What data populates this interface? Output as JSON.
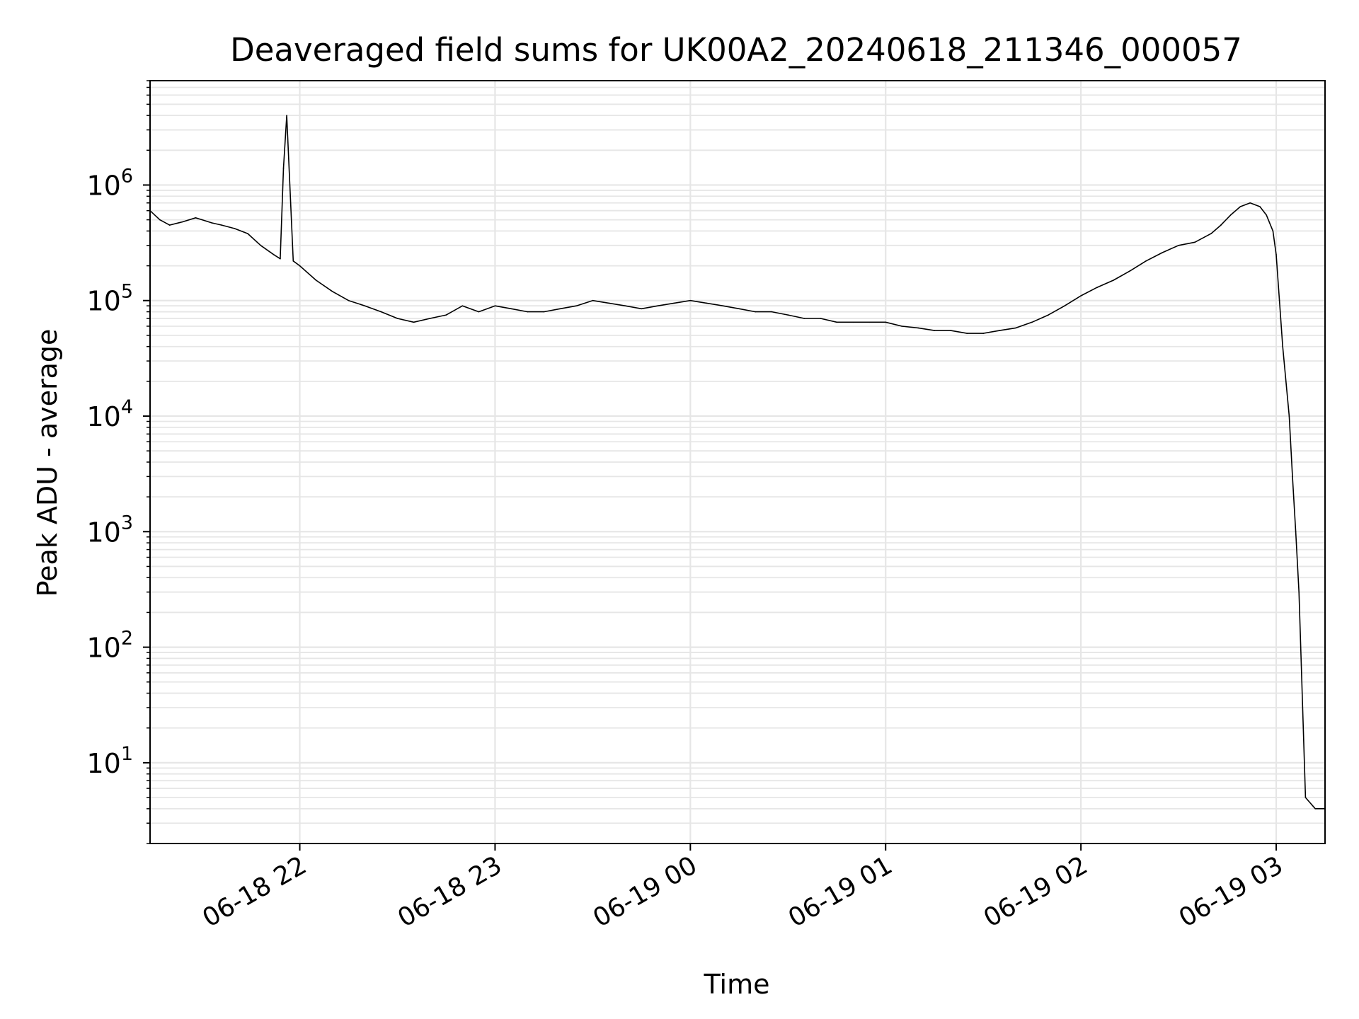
{
  "chart_data": {
    "type": "line",
    "title": "Deaveraged field sums for UK00A2_20240618_211346_000057",
    "xlabel": "Time",
    "ylabel": "Peak ADU - average",
    "x_scale": "time",
    "y_scale": "log",
    "xlim": [
      "2024-06-18 21:14",
      "2024-06-19 03:15"
    ],
    "ylim": [
      2,
      8000000
    ],
    "grid": true,
    "x_ticks": [
      "06-18 22",
      "06-18 23",
      "06-19 00",
      "06-19 01",
      "06-19 02",
      "06-19 03"
    ],
    "y_ticks": [
      {
        "base": "10",
        "exp": "1"
      },
      {
        "base": "10",
        "exp": "2"
      },
      {
        "base": "10",
        "exp": "3"
      },
      {
        "base": "10",
        "exp": "4"
      },
      {
        "base": "10",
        "exp": "5"
      },
      {
        "base": "10",
        "exp": "6"
      }
    ],
    "line_color": "#000000",
    "grid_color": "#e6e6e6",
    "series": [
      {
        "x": [
          "2024-06-18 21:14",
          "2024-06-18 21:17",
          "2024-06-18 21:20",
          "2024-06-18 21:24",
          "2024-06-18 21:28",
          "2024-06-18 21:30",
          "2024-06-18 21:33",
          "2024-06-18 21:36",
          "2024-06-18 21:40",
          "2024-06-18 21:44",
          "2024-06-18 21:48",
          "2024-06-18 21:52",
          "2024-06-18 21:54",
          "2024-06-18 21:55",
          "2024-06-18 21:56",
          "2024-06-18 21:58",
          "2024-06-18 22:00",
          "2024-06-18 22:05",
          "2024-06-18 22:10",
          "2024-06-18 22:15",
          "2024-06-18 22:20",
          "2024-06-18 22:25",
          "2024-06-18 22:30",
          "2024-06-18 22:35",
          "2024-06-18 22:40",
          "2024-06-18 22:45",
          "2024-06-18 22:50",
          "2024-06-18 22:55",
          "2024-06-18 23:00",
          "2024-06-18 23:05",
          "2024-06-18 23:10",
          "2024-06-18 23:15",
          "2024-06-18 23:20",
          "2024-06-18 23:25",
          "2024-06-18 23:30",
          "2024-06-18 23:35",
          "2024-06-18 23:40",
          "2024-06-18 23:45",
          "2024-06-18 23:50",
          "2024-06-18 23:55",
          "2024-06-19 00:00",
          "2024-06-19 00:05",
          "2024-06-19 00:10",
          "2024-06-19 00:15",
          "2024-06-19 00:20",
          "2024-06-19 00:25",
          "2024-06-19 00:30",
          "2024-06-19 00:35",
          "2024-06-19 00:40",
          "2024-06-19 00:45",
          "2024-06-19 00:50",
          "2024-06-19 00:55",
          "2024-06-19 01:00",
          "2024-06-19 01:05",
          "2024-06-19 01:10",
          "2024-06-19 01:15",
          "2024-06-19 01:20",
          "2024-06-19 01:25",
          "2024-06-19 01:30",
          "2024-06-19 01:35",
          "2024-06-19 01:40",
          "2024-06-19 01:45",
          "2024-06-19 01:50",
          "2024-06-19 01:55",
          "2024-06-19 02:00",
          "2024-06-19 02:05",
          "2024-06-19 02:10",
          "2024-06-19 02:15",
          "2024-06-19 02:20",
          "2024-06-19 02:25",
          "2024-06-19 02:30",
          "2024-06-19 02:35",
          "2024-06-19 02:40",
          "2024-06-19 02:43",
          "2024-06-19 02:46",
          "2024-06-19 02:49",
          "2024-06-19 02:52",
          "2024-06-19 02:55",
          "2024-06-19 02:57",
          "2024-06-19 02:59",
          "2024-06-19 03:00",
          "2024-06-19 03:01",
          "2024-06-19 03:02",
          "2024-06-19 03:03",
          "2024-06-19 03:04",
          "2024-06-19 03:05",
          "2024-06-19 03:06",
          "2024-06-19 03:07",
          "2024-06-19 03:09",
          "2024-06-19 03:12",
          "2024-06-19 03:15"
        ],
        "y": [
          600000,
          500000,
          450000,
          480000,
          520000,
          500000,
          470000,
          450000,
          420000,
          380000,
          300000,
          250000,
          230000,
          1400000,
          4000000,
          220000,
          200000,
          150000,
          120000,
          100000,
          90000,
          80000,
          70000,
          65000,
          70000,
          75000,
          90000,
          80000,
          90000,
          85000,
          80000,
          80000,
          85000,
          90000,
          100000,
          95000,
          90000,
          85000,
          90000,
          95000,
          100000,
          95000,
          90000,
          85000,
          80000,
          80000,
          75000,
          70000,
          70000,
          65000,
          65000,
          65000,
          65000,
          60000,
          58000,
          55000,
          55000,
          52000,
          52000,
          55000,
          58000,
          65000,
          75000,
          90000,
          110000,
          130000,
          150000,
          180000,
          220000,
          260000,
          300000,
          320000,
          380000,
          450000,
          550000,
          650000,
          700000,
          650000,
          550000,
          400000,
          250000,
          100000,
          40000,
          20000,
          10000,
          3000,
          1000,
          300,
          5,
          4,
          4
        ]
      }
    ]
  }
}
